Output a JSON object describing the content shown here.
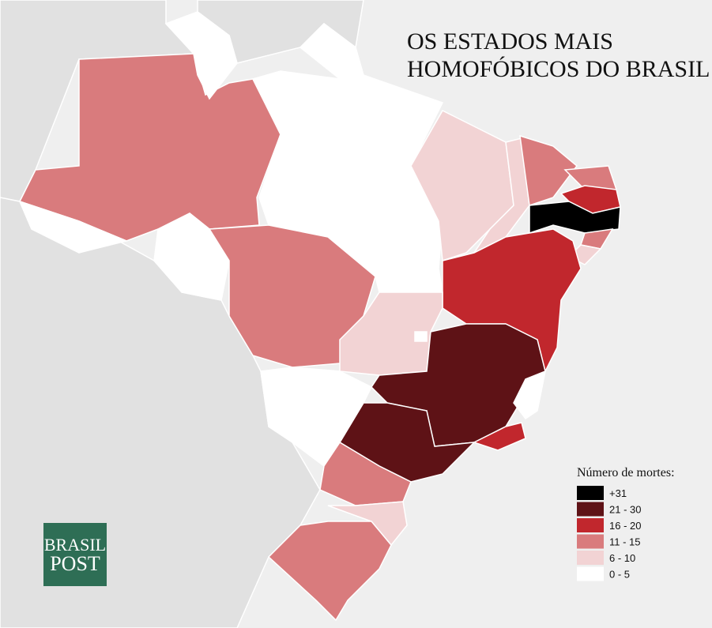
{
  "header": {
    "title_lines": [
      "OS ESTADOS MAIS",
      "HOMOFÓBICOS DO BRASIL"
    ]
  },
  "legend": {
    "title": "Número de mortes:",
    "items": [
      {
        "label": "+31",
        "color": "#000000"
      },
      {
        "label": "21 - 30",
        "color": "#5e1216"
      },
      {
        "label": "16 - 20",
        "color": "#c1272d"
      },
      {
        "label": "11 - 15",
        "color": "#d97b7d"
      },
      {
        "label": "6 - 10",
        "color": "#f2d3d4"
      },
      {
        "label": "0 - 5",
        "color": "#ffffff"
      }
    ]
  },
  "logo": {
    "lines": [
      "BRASIL",
      "POST"
    ]
  }
}
